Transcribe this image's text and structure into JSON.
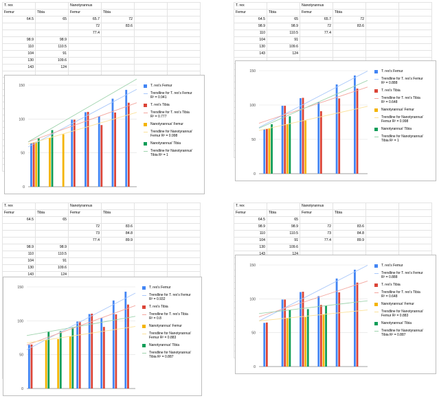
{
  "colors": {
    "trex_femur": "#4285f4",
    "trex_tibia": "#db4437",
    "nano_femur": "#f4b400",
    "nano_tibia": "#0f9d58",
    "trend_trex_femur": "#a8c7fa",
    "trend_trex_tibia": "#f3a59d",
    "trend_nano_femur": "#fbe19a",
    "trend_nano_tibia": "#9fd3ad"
  },
  "panels": [
    {
      "table": {
        "header1": [
          "T. rex",
          "",
          "Nanotyrannus",
          ""
        ],
        "header2": [
          "Femur",
          "Tibia",
          "Femur",
          "Tibia"
        ],
        "rows": [
          [
            "64.5",
            "65",
            "65.7",
            "72"
          ],
          [
            "",
            "",
            "72",
            "83.6"
          ],
          [
            "",
            "",
            "77.4",
            ""
          ],
          [
            "98.9",
            "98.9",
            "",
            ""
          ],
          [
            "110",
            "110.5",
            "",
            ""
          ],
          [
            "104",
            "91",
            "",
            ""
          ],
          [
            "130",
            "109.6",
            "",
            ""
          ],
          [
            "143",
            "124",
            "",
            ""
          ]
        ]
      },
      "legend": [
        "T. rex's Femur",
        "Trendline for T. rex's Femur R² = 0.941",
        "T. rex's Tibia",
        "Trendline for T. rex's Tibia R² = 0.777",
        "Nanotyrannus' Femur",
        "Trendline for Nanotyrannus' Femur R² = 0.998",
        "Nanotyrannus' Tibia",
        "Trendline for Nanotyrannus' Tibia R² = 1"
      ]
    },
    {
      "table": {
        "header1": [
          "T. rex",
          "",
          "Nanotyrannus",
          ""
        ],
        "header2": [
          "Femur",
          "Tibia",
          "Femur",
          "Tibia"
        ],
        "rows": [
          [
            "64.5",
            "65",
            "65.7",
            "72"
          ],
          [
            "98.9",
            "98.9",
            "72",
            "83.6"
          ],
          [
            "110",
            "110.5",
            "77.4",
            ""
          ],
          [
            "104",
            "91",
            "",
            ""
          ],
          [
            "130",
            "109.6",
            "",
            ""
          ],
          [
            "143",
            "124",
            "",
            ""
          ]
        ]
      },
      "legend": [
        "T. rex's Femur",
        "Trendline for T. rex's Femur R² = 0.888",
        "T. rex's Tibia",
        "Trendline for T. rex's Tibia R² = 0.648",
        "Nanotyrannus' Femur",
        "Trendline for Nanotyrannus' Femur R² = 0.998",
        "Nanotyrannus' Tibia",
        "Trendline for Nanotyrannus' Tibia R² = 1"
      ]
    },
    {
      "table": {
        "header1": [
          "T. rex",
          "",
          "Nanotyrannus",
          ""
        ],
        "header2": [
          "Femur",
          "Tibia",
          "Femur",
          "Tibia"
        ],
        "rows": [
          [
            "64.5",
            "65",
            "",
            ""
          ],
          [
            "",
            "",
            "72",
            "83.6"
          ],
          [
            "",
            "",
            "73",
            "84.8"
          ],
          [
            "",
            "",
            "77.4",
            "89.9"
          ],
          [
            "98.9",
            "98.9",
            "",
            ""
          ],
          [
            "110",
            "110.5",
            "",
            ""
          ],
          [
            "104",
            "91",
            "",
            ""
          ],
          [
            "130",
            "109.6",
            "",
            ""
          ],
          [
            "143",
            "124",
            "",
            ""
          ]
        ]
      },
      "legend": [
        "T. rex's Femur",
        "Trendline for T. rex's Femur R² = 0.932",
        "T. rex's Tibia",
        "Trendline for T. rex's Tibia R² = 0.8",
        "Nanotyrannus' Femur",
        "Trendline for Nanotyrannus' Femur R² = 0.883",
        "Nanotyrannus' Tibia",
        "Trendline for Nanotyrannus' Tibia R² = 0.887"
      ]
    },
    {
      "table": {
        "header1": [
          "T. rex",
          "",
          "Nanotyrannus",
          ""
        ],
        "header2": [
          "Femur",
          "Tibia",
          "Femur",
          "Tibia"
        ],
        "rows": [
          [
            "64.5",
            "65",
            "",
            ""
          ],
          [
            "98.9",
            "98.9",
            "72",
            "83.6"
          ],
          [
            "110",
            "110.5",
            "73",
            "84.8"
          ],
          [
            "104",
            "91",
            "77.4",
            "89.9"
          ],
          [
            "130",
            "109.6",
            "",
            ""
          ],
          [
            "143",
            "124",
            "",
            ""
          ]
        ]
      },
      "legend": [
        "T. rex's Femur",
        "Trendline for T. rex's Femur R² = 0.888",
        "T. rex's Tibia",
        "Trendline for T. rex's Tibia R² = 0.648",
        "Nanotyrannus' Femur",
        "Trendline for Nanotyrannus' Femur R² = 0.883",
        "Nanotyrannus' Tibia",
        "Trendline for Nanotyrannus' Tibia R² = 0.887"
      ]
    }
  ],
  "chart_data": [
    {
      "type": "bar",
      "ylim": [
        0,
        150
      ],
      "yticks": [
        "0",
        "50",
        "100",
        "150"
      ],
      "grid": true,
      "legend_position": "right",
      "series": [
        {
          "name": "T. rex's Femur",
          "values": [
            64.5,
            null,
            null,
            98.9,
            110,
            104,
            130,
            143
          ]
        },
        {
          "name": "T. rex's Tibia",
          "values": [
            65,
            null,
            null,
            98.9,
            110.5,
            91,
            109.6,
            124
          ]
        },
        {
          "name": "Nanotyrannus' Femur",
          "values": [
            65.7,
            72,
            77.4,
            null,
            null,
            null,
            null,
            null
          ]
        },
        {
          "name": "Nanotyrannus' Tibia",
          "values": [
            72,
            83.6,
            null,
            null,
            null,
            null,
            null,
            null
          ]
        }
      ],
      "trendlines": [
        {
          "name": "Trendline for T. rex's Femur",
          "r2": 0.941
        },
        {
          "name": "Trendline for T. rex's Tibia",
          "r2": 0.777
        },
        {
          "name": "Trendline for Nanotyrannus' Femur",
          "r2": 0.998
        },
        {
          "name": "Trendline for Nanotyrannus' Tibia",
          "r2": 1
        }
      ]
    },
    {
      "type": "bar",
      "ylim": [
        0,
        150
      ],
      "yticks": [
        "0",
        "50",
        "100",
        "150"
      ],
      "grid": true,
      "legend_position": "right",
      "series": [
        {
          "name": "T. rex's Femur",
          "values": [
            64.5,
            98.9,
            110,
            104,
            130,
            143
          ]
        },
        {
          "name": "T. rex's Tibia",
          "values": [
            65,
            98.9,
            110.5,
            91,
            109.6,
            124
          ]
        },
        {
          "name": "Nanotyrannus' Femur",
          "values": [
            65.7,
            72,
            77.4,
            null,
            null,
            null
          ]
        },
        {
          "name": "Nanotyrannus' Tibia",
          "values": [
            72,
            83.6,
            null,
            null,
            null,
            null
          ]
        }
      ],
      "trendlines": [
        {
          "name": "Trendline for T. rex's Femur",
          "r2": 0.888
        },
        {
          "name": "Trendline for T. rex's Tibia",
          "r2": 0.648
        },
        {
          "name": "Trendline for Nanotyrannus' Femur",
          "r2": 0.998
        },
        {
          "name": "Trendline for Nanotyrannus' Tibia",
          "r2": 1
        }
      ]
    },
    {
      "type": "bar",
      "ylim": [
        0,
        150
      ],
      "yticks": [
        "0",
        "50",
        "100",
        "150"
      ],
      "grid": true,
      "legend_position": "right",
      "series": [
        {
          "name": "T. rex's Femur",
          "values": [
            64.5,
            null,
            null,
            null,
            98.9,
            110,
            104,
            130,
            143
          ]
        },
        {
          "name": "T. rex's Tibia",
          "values": [
            65,
            null,
            null,
            null,
            98.9,
            110.5,
            91,
            109.6,
            124
          ]
        },
        {
          "name": "Nanotyrannus' Femur",
          "values": [
            null,
            72,
            73,
            77.4,
            null,
            null,
            null,
            null,
            null
          ]
        },
        {
          "name": "Nanotyrannus' Tibia",
          "values": [
            null,
            83.6,
            84.8,
            89.9,
            null,
            null,
            null,
            null,
            null
          ]
        }
      ],
      "trendlines": [
        {
          "name": "Trendline for T. rex's Femur",
          "r2": 0.932
        },
        {
          "name": "Trendline for T. rex's Tibia",
          "r2": 0.8
        },
        {
          "name": "Trendline for Nanotyrannus' Femur",
          "r2": 0.883
        },
        {
          "name": "Trendline for Nanotyrannus' Tibia",
          "r2": 0.887
        }
      ]
    },
    {
      "type": "bar",
      "ylim": [
        0,
        150
      ],
      "yticks": [
        "0",
        "50",
        "100",
        "150"
      ],
      "grid": true,
      "legend_position": "right",
      "series": [
        {
          "name": "T. rex's Femur",
          "values": [
            64.5,
            98.9,
            110,
            104,
            130,
            143
          ]
        },
        {
          "name": "T. rex's Tibia",
          "values": [
            65,
            98.9,
            110.5,
            91,
            109.6,
            124
          ]
        },
        {
          "name": "Nanotyrannus' Femur",
          "values": [
            null,
            72,
            73,
            77.4,
            null,
            null
          ]
        },
        {
          "name": "Nanotyrannus' Tibia",
          "values": [
            null,
            83.6,
            84.8,
            89.9,
            null,
            null
          ]
        }
      ],
      "trendlines": [
        {
          "name": "Trendline for T. rex's Femur",
          "r2": 0.888
        },
        {
          "name": "Trendline for T. rex's Tibia",
          "r2": 0.648
        },
        {
          "name": "Trendline for Nanotyrannus' Femur",
          "r2": 0.883
        },
        {
          "name": "Trendline for Nanotyrannus' Tibia",
          "r2": 0.887
        }
      ]
    }
  ]
}
